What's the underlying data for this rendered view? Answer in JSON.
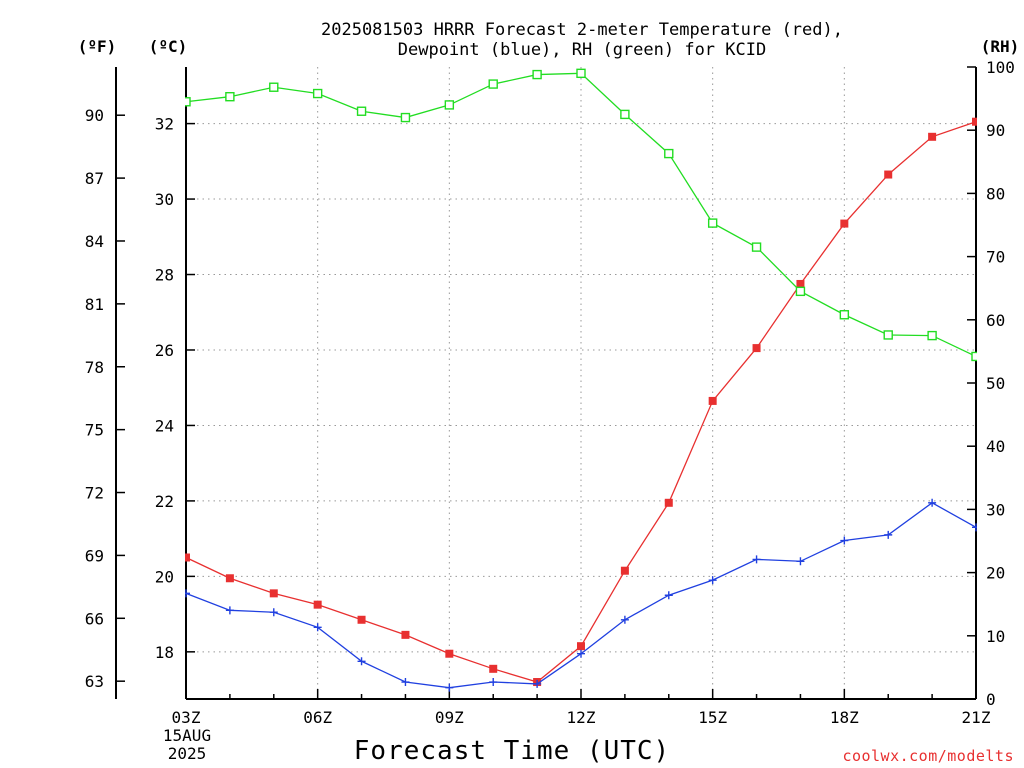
{
  "chart_data": {
    "type": "line",
    "title_line1": "2025081503 HRRR Forecast 2-meter Temperature (red),",
    "title_line2": "Dewpoint (blue), RH (green) for KCID",
    "xlabel": "Forecast Time (UTC)",
    "x_ticks": [
      "03Z",
      "06Z",
      "09Z",
      "12Z",
      "15Z",
      "18Z",
      "21Z"
    ],
    "x_date_lines": [
      "15AUG",
      "2025"
    ],
    "x_hours": [
      3,
      4,
      5,
      6,
      7,
      8,
      9,
      10,
      11,
      12,
      13,
      14,
      15,
      16,
      17,
      18,
      19,
      20,
      21
    ],
    "xlim": [
      3,
      21
    ],
    "y_left_c": {
      "unit": "(ºC)",
      "ticks": [
        "18",
        "20",
        "22",
        "24",
        "26",
        "28",
        "30",
        "32"
      ],
      "tick_values": [
        18,
        20,
        22,
        24,
        26,
        28,
        30,
        32
      ],
      "ylim": [
        16.75,
        33.5
      ]
    },
    "y_left_f": {
      "unit": "(ºF)",
      "ticks": [
        "63",
        "66",
        "69",
        "72",
        "75",
        "78",
        "81",
        "84",
        "87",
        "90"
      ],
      "tick_values": [
        63,
        66,
        69,
        72,
        75,
        78,
        81,
        84,
        87,
        90
      ]
    },
    "y_right_rh": {
      "unit": "(RH)",
      "ticks": [
        "0",
        "10",
        "20",
        "30",
        "40",
        "50",
        "60",
        "70",
        "80",
        "90",
        "100"
      ],
      "tick_values": [
        0,
        10,
        20,
        30,
        40,
        50,
        60,
        70,
        80,
        90,
        100
      ],
      "ylim": [
        0,
        100
      ]
    },
    "grid": true,
    "series": [
      {
        "color": "#e83030",
        "marker": "filled-square",
        "axis": "celsius",
        "values": [
          20.5,
          19.95,
          19.55,
          19.25,
          18.85,
          18.45,
          17.95,
          17.55,
          17.2,
          18.15,
          20.15,
          21.95,
          24.65,
          26.05,
          27.75,
          29.35,
          30.65,
          31.65,
          32.05
        ]
      },
      {
        "color": "#2040e0",
        "marker": "plus",
        "axis": "celsius",
        "values": [
          19.55,
          19.1,
          19.05,
          18.65,
          17.75,
          17.2,
          17.05,
          17.2,
          17.15,
          17.95,
          18.85,
          19.5,
          19.9,
          20.45,
          20.4,
          20.95,
          21.1,
          21.95,
          21.3
        ]
      },
      {
        "color": "#22dd22",
        "marker": "open-square",
        "axis": "rh",
        "values": [
          94.5,
          95.3,
          96.8,
          95.8,
          93.0,
          92.0,
          94.0,
          97.3,
          98.8,
          99.0,
          92.5,
          86.3,
          75.3,
          71.5,
          64.5,
          60.8,
          57.6,
          57.5,
          54.2
        ]
      }
    ]
  },
  "watermark": "coolwx.com/modelts"
}
